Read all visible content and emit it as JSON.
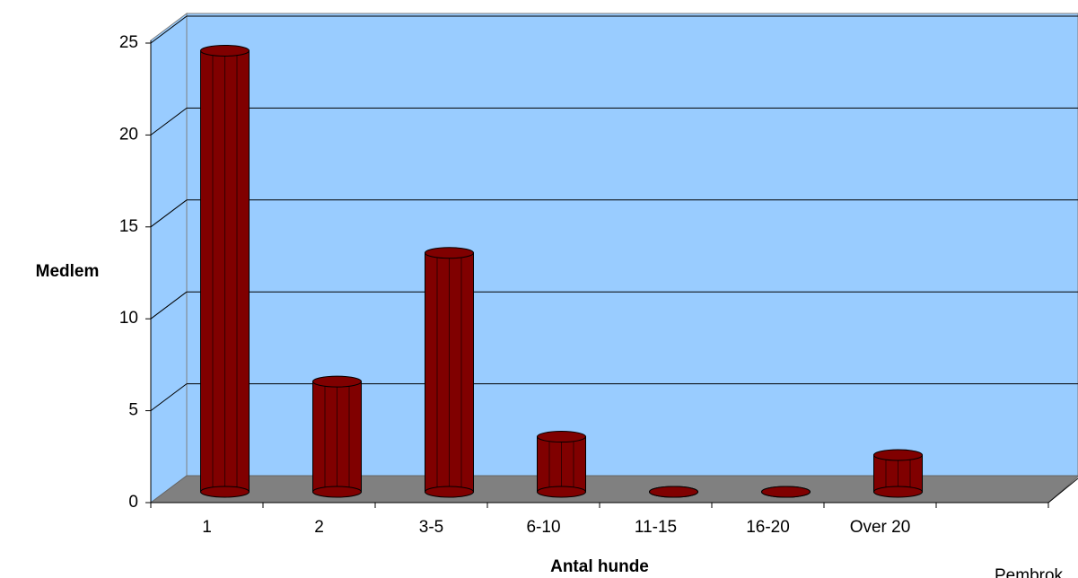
{
  "chart_data": {
    "type": "bar",
    "x_label": "Antal hunde",
    "y_label": "Medlem",
    "annotation": "Pembrok",
    "categories": [
      "1",
      "2",
      "3-5",
      "6-10",
      "11-15",
      "16-20",
      "Over 20"
    ],
    "values": [
      24,
      6,
      13,
      3,
      0,
      0,
      2
    ],
    "color": "#800000",
    "ylim": [
      0,
      25
    ],
    "yticks": [
      0,
      5,
      10,
      15,
      20,
      25
    ],
    "grid": true
  }
}
